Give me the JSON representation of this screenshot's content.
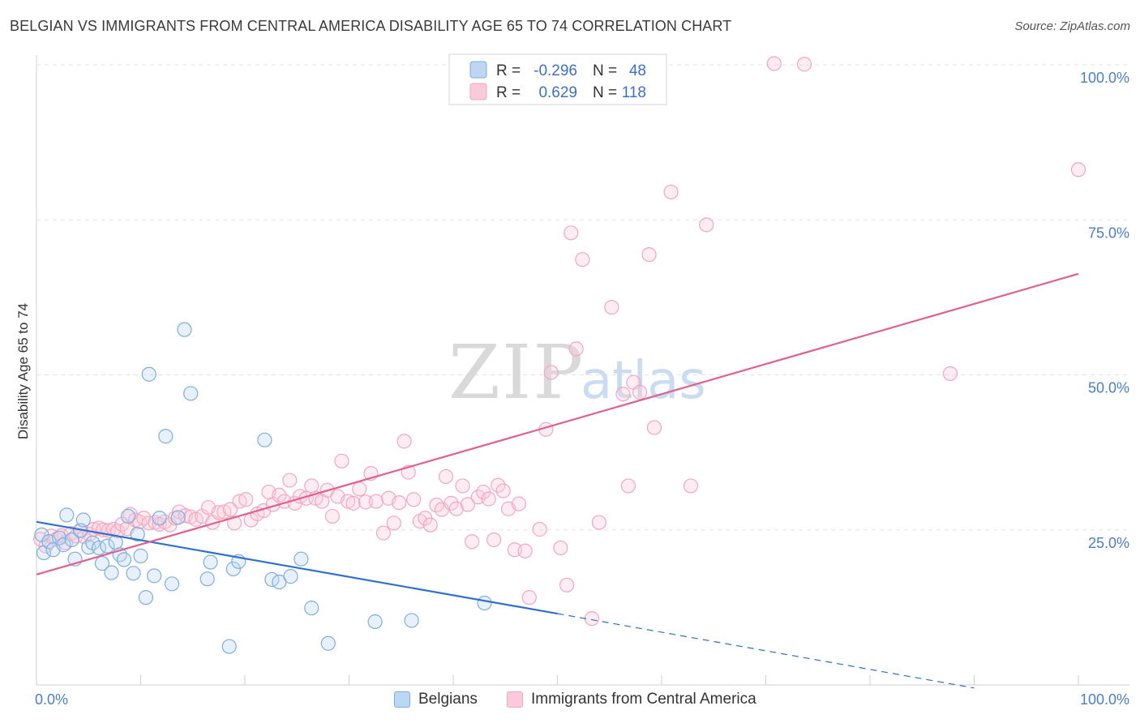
{
  "title": "BELGIAN VS IMMIGRANTS FROM CENTRAL AMERICA DISABILITY AGE 65 TO 74 CORRELATION CHART",
  "source": "Source: ZipAtlas.com",
  "watermark": {
    "part1": "ZIP",
    "part2": "atlas"
  },
  "chart_data": {
    "type": "scatter",
    "title": "BELGIAN VS IMMIGRANTS FROM CENTRAL AMERICA DISABILITY AGE 65 TO 74 CORRELATION CHART",
    "xlabel": "",
    "ylabel": "Disability Age 65 to 74",
    "xlim": [
      0,
      100
    ],
    "ylim": [
      0,
      100
    ],
    "x_tick_labels": [
      "0.0%",
      "100.0%"
    ],
    "y_tick_labels": [
      "25.0%",
      "50.0%",
      "75.0%",
      "100.0%"
    ],
    "y_ticks": [
      25,
      50,
      75,
      100
    ],
    "grid": true,
    "legend_position": "top-center",
    "series": [
      {
        "name": "Belgians",
        "color": "#7eaee0",
        "line_color": "#2e6fd0",
        "stats": {
          "r_label": "R =",
          "r_value": "-0.296",
          "n_label": "N =",
          "n_value": "48"
        },
        "trend": {
          "x0": 0,
          "y0": 26.3,
          "x1": 50,
          "y1": 11.5,
          "x_dash_end": 90,
          "y_dash_end": -0.5
        },
        "points": [
          [
            0.5,
            24.2
          ],
          [
            0.7,
            21.3
          ],
          [
            1.2,
            23.1
          ],
          [
            1.6,
            21.8
          ],
          [
            2.2,
            23.7
          ],
          [
            2.6,
            22.6
          ],
          [
            2.9,
            27.4
          ],
          [
            3.4,
            23.4
          ],
          [
            3.7,
            20.3
          ],
          [
            4.2,
            24.9
          ],
          [
            4.5,
            26.6
          ],
          [
            5.0,
            22.2
          ],
          [
            5.4,
            22.9
          ],
          [
            6.0,
            22.1
          ],
          [
            6.3,
            19.6
          ],
          [
            6.8,
            22.4
          ],
          [
            7.2,
            18.1
          ],
          [
            7.6,
            23.0
          ],
          [
            8.0,
            21.0
          ],
          [
            8.4,
            20.2
          ],
          [
            8.8,
            27.2
          ],
          [
            9.3,
            18.0
          ],
          [
            9.7,
            24.3
          ],
          [
            10.0,
            20.8
          ],
          [
            10.5,
            14.1
          ],
          [
            10.8,
            50.1
          ],
          [
            11.3,
            17.6
          ],
          [
            11.8,
            26.9
          ],
          [
            12.4,
            40.1
          ],
          [
            13.0,
            16.3
          ],
          [
            13.6,
            27.0
          ],
          [
            14.2,
            57.3
          ],
          [
            14.8,
            47.0
          ],
          [
            16.4,
            17.1
          ],
          [
            16.7,
            19.8
          ],
          [
            18.5,
            6.2
          ],
          [
            18.9,
            18.7
          ],
          [
            19.4,
            19.9
          ],
          [
            21.9,
            39.5
          ],
          [
            22.6,
            17.0
          ],
          [
            23.3,
            16.6
          ],
          [
            24.4,
            17.5
          ],
          [
            25.4,
            20.3
          ],
          [
            26.4,
            12.4
          ],
          [
            28.0,
            6.7
          ],
          [
            32.5,
            10.2
          ],
          [
            36.0,
            10.4
          ],
          [
            43.0,
            13.2
          ]
        ]
      },
      {
        "name": "Immigrants from Central America",
        "color": "#f4a6bf",
        "line_color": "#e0608e",
        "stats": {
          "r_label": "R =",
          "r_value": "0.629",
          "n_label": "N =",
          "n_value": "118"
        },
        "trend": {
          "x0": 0,
          "y0": 17.8,
          "x1": 100,
          "y1": 66.3
        },
        "points": [
          [
            0.4,
            23.5
          ],
          [
            0.9,
            22.4
          ],
          [
            1.4,
            24.0
          ],
          [
            1.9,
            23.5
          ],
          [
            2.4,
            24.1
          ],
          [
            2.8,
            22.9
          ],
          [
            3.3,
            24.4
          ],
          [
            3.8,
            24.0
          ],
          [
            4.3,
            24.9
          ],
          [
            4.6,
            23.9
          ],
          [
            5.1,
            24.3
          ],
          [
            5.5,
            25.1
          ],
          [
            6.0,
            25.3
          ],
          [
            6.4,
            25.0
          ],
          [
            6.9,
            24.9
          ],
          [
            7.4,
            25.1
          ],
          [
            7.8,
            24.8
          ],
          [
            8.2,
            25.9
          ],
          [
            8.7,
            25.2
          ],
          [
            9.0,
            27.5
          ],
          [
            9.5,
            26.6
          ],
          [
            9.9,
            26.3
          ],
          [
            10.3,
            26.9
          ],
          [
            10.8,
            26.1
          ],
          [
            11.4,
            26.2
          ],
          [
            11.8,
            25.9
          ],
          [
            12.3,
            26.3
          ],
          [
            12.8,
            25.8
          ],
          [
            13.3,
            26.9
          ],
          [
            13.7,
            27.9
          ],
          [
            14.3,
            27.3
          ],
          [
            14.8,
            27.1
          ],
          [
            15.3,
            26.7
          ],
          [
            15.9,
            27.2
          ],
          [
            16.5,
            28.6
          ],
          [
            16.9,
            26.2
          ],
          [
            17.5,
            27.8
          ],
          [
            18.0,
            27.9
          ],
          [
            18.6,
            28.3
          ],
          [
            19.0,
            26.1
          ],
          [
            19.5,
            29.6
          ],
          [
            20.1,
            29.9
          ],
          [
            20.6,
            26.6
          ],
          [
            21.2,
            27.6
          ],
          [
            21.8,
            28.1
          ],
          [
            22.3,
            31.1
          ],
          [
            22.7,
            29.1
          ],
          [
            23.3,
            30.6
          ],
          [
            23.8,
            29.6
          ],
          [
            24.3,
            33.0
          ],
          [
            24.8,
            29.3
          ],
          [
            25.3,
            30.4
          ],
          [
            25.9,
            30.1
          ],
          [
            26.4,
            32.1
          ],
          [
            26.8,
            30.1
          ],
          [
            27.4,
            29.6
          ],
          [
            27.9,
            31.4
          ],
          [
            28.4,
            27.2
          ],
          [
            28.9,
            30.4
          ],
          [
            29.3,
            36.1
          ],
          [
            29.9,
            29.6
          ],
          [
            30.4,
            29.3
          ],
          [
            31.0,
            31.6
          ],
          [
            31.6,
            29.5
          ],
          [
            32.1,
            34.1
          ],
          [
            32.6,
            29.6
          ],
          [
            33.3,
            24.5
          ],
          [
            33.8,
            30.1
          ],
          [
            34.3,
            26.1
          ],
          [
            34.8,
            29.4
          ],
          [
            35.3,
            39.3
          ],
          [
            35.7,
            34.3
          ],
          [
            36.2,
            29.9
          ],
          [
            36.8,
            26.4
          ],
          [
            37.3,
            26.9
          ],
          [
            37.8,
            25.8
          ],
          [
            38.4,
            29.0
          ],
          [
            38.9,
            28.3
          ],
          [
            39.3,
            33.6
          ],
          [
            39.8,
            29.3
          ],
          [
            40.3,
            28.4
          ],
          [
            40.9,
            32.1
          ],
          [
            41.4,
            29.1
          ],
          [
            41.8,
            23.1
          ],
          [
            42.4,
            30.3
          ],
          [
            42.9,
            31.1
          ],
          [
            43.4,
            30.0
          ],
          [
            43.9,
            23.4
          ],
          [
            44.3,
            32.2
          ],
          [
            44.8,
            31.3
          ],
          [
            45.3,
            28.4
          ],
          [
            45.9,
            21.8
          ],
          [
            46.3,
            29.2
          ],
          [
            46.9,
            21.6
          ],
          [
            47.3,
            14.1
          ],
          [
            48.3,
            25.1
          ],
          [
            48.9,
            41.2
          ],
          [
            49.4,
            50.4
          ],
          [
            50.3,
            22.1
          ],
          [
            50.9,
            16.1
          ],
          [
            51.3,
            72.9
          ],
          [
            51.8,
            54.2
          ],
          [
            52.4,
            68.6
          ],
          [
            53.3,
            10.7
          ],
          [
            54.0,
            26.2
          ],
          [
            55.2,
            60.9
          ],
          [
            56.3,
            46.9
          ],
          [
            56.8,
            32.1
          ],
          [
            57.3,
            48.8
          ],
          [
            57.9,
            47.2
          ],
          [
            58.8,
            69.4
          ],
          [
            59.3,
            41.5
          ],
          [
            60.9,
            79.5
          ],
          [
            62.8,
            32.1
          ],
          [
            64.3,
            74.2
          ],
          [
            70.8,
            100.2
          ],
          [
            73.7,
            100.1
          ],
          [
            87.7,
            50.2
          ],
          [
            100.0,
            83.1
          ]
        ]
      }
    ]
  }
}
